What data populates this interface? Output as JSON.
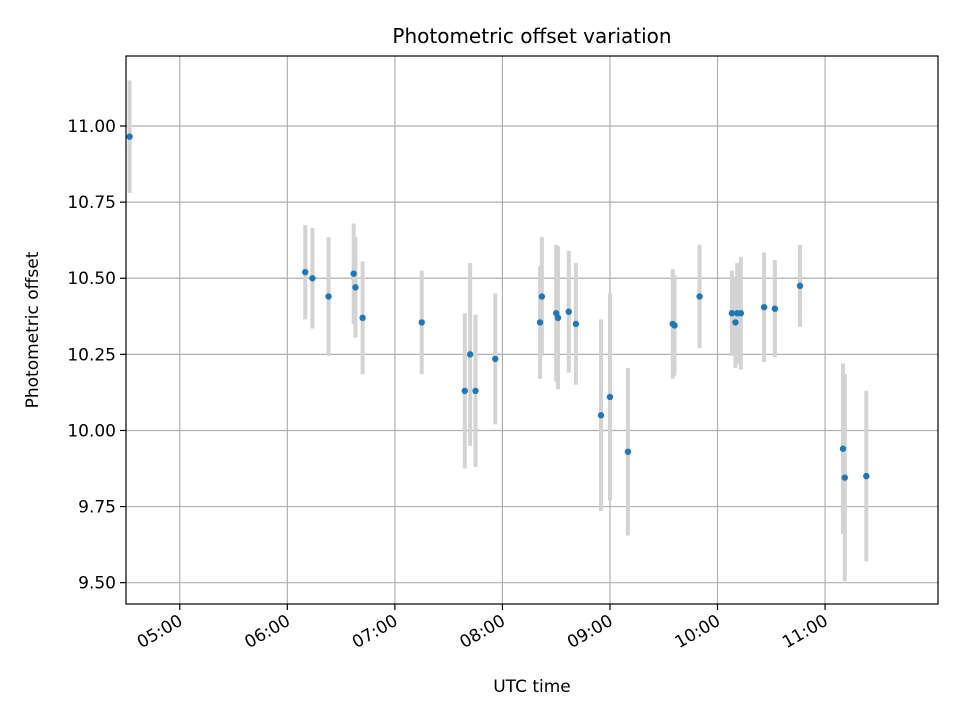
{
  "chart_data": {
    "type": "scatter",
    "title": "Photometric offset variation",
    "xlabel": "UTC time",
    "ylabel": "Photometric offset",
    "x_ticks": [
      "05:00",
      "06:00",
      "07:00",
      "08:00",
      "09:00",
      "10:00",
      "11:00"
    ],
    "y_ticks": [
      "9.50",
      "9.75",
      "10.00",
      "10.25",
      "10.50",
      "10.75",
      "11.00"
    ],
    "xlim": [
      "04:30",
      "12:03"
    ],
    "ylim": [
      9.43,
      11.23
    ],
    "grid": true,
    "marker_color": "#1f77b4",
    "errorbar_color": "#d3d3d3",
    "points": [
      {
        "t": "04:32",
        "y": 10.965,
        "err": 0.185
      },
      {
        "t": "06:10",
        "y": 10.52,
        "err": 0.155
      },
      {
        "t": "06:14",
        "y": 10.5,
        "err": 0.165
      },
      {
        "t": "06:23",
        "y": 10.44,
        "err": 0.195
      },
      {
        "t": "06:37",
        "y": 10.515,
        "err": 0.165
      },
      {
        "t": "06:38",
        "y": 10.47,
        "err": 0.165
      },
      {
        "t": "06:42",
        "y": 10.37,
        "err": 0.185
      },
      {
        "t": "07:15",
        "y": 10.355,
        "err": 0.17
      },
      {
        "t": "07:39",
        "y": 10.13,
        "err": 0.255
      },
      {
        "t": "07:42",
        "y": 10.25,
        "err": 0.3
      },
      {
        "t": "07:45",
        "y": 10.13,
        "err": 0.25
      },
      {
        "t": "07:56",
        "y": 10.235,
        "err": 0.215
      },
      {
        "t": "08:21",
        "y": 10.355,
        "err": 0.185
      },
      {
        "t": "08:22",
        "y": 10.44,
        "err": 0.195
      },
      {
        "t": "08:30",
        "y": 10.385,
        "err": 0.225
      },
      {
        "t": "08:31",
        "y": 10.37,
        "err": 0.235
      },
      {
        "t": "08:37",
        "y": 10.39,
        "err": 0.2
      },
      {
        "t": "08:41",
        "y": 10.35,
        "err": 0.2
      },
      {
        "t": "08:55",
        "y": 10.05,
        "err": 0.315
      },
      {
        "t": "09:00",
        "y": 10.11,
        "err": 0.34
      },
      {
        "t": "09:10",
        "y": 9.93,
        "err": 0.275
      },
      {
        "t": "09:35",
        "y": 10.35,
        "err": 0.18
      },
      {
        "t": "09:36",
        "y": 10.345,
        "err": 0.165
      },
      {
        "t": "09:50",
        "y": 10.44,
        "err": 0.17
      },
      {
        "t": "10:08",
        "y": 10.385,
        "err": 0.14
      },
      {
        "t": "10:10",
        "y": 10.355,
        "err": 0.15
      },
      {
        "t": "10:11",
        "y": 10.385,
        "err": 0.165
      },
      {
        "t": "10:13",
        "y": 10.385,
        "err": 0.185
      },
      {
        "t": "10:26",
        "y": 10.405,
        "err": 0.18
      },
      {
        "t": "10:32",
        "y": 10.4,
        "err": 0.16
      },
      {
        "t": "10:46",
        "y": 10.475,
        "err": 0.135
      },
      {
        "t": "11:10",
        "y": 9.94,
        "err": 0.28
      },
      {
        "t": "11:11",
        "y": 9.845,
        "err": 0.34
      },
      {
        "t": "11:23",
        "y": 9.85,
        "err": 0.28
      }
    ]
  }
}
